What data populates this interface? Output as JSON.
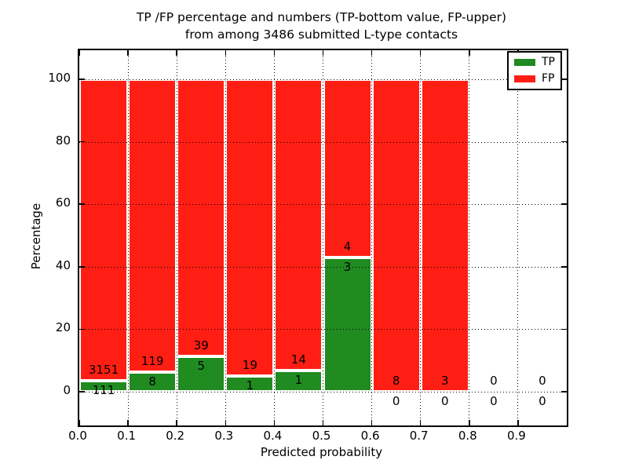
{
  "chart_data": {
    "type": "bar",
    "variant": "stacked-100-percent",
    "title": {
      "line1": "TP /FP percentage and numbers (TP-bottom value, FP-upper)",
      "line2": "from among 3486 submitted L-type contacts"
    },
    "xlabel": "Predicted probability",
    "ylabel": "Percentage",
    "total_contacts": 3486,
    "xticks": [
      "0.0",
      "0.1",
      "0.2",
      "0.3",
      "0.4",
      "0.5",
      "0.6",
      "0.7",
      "0.8",
      "0.9"
    ],
    "yticks": [
      "0",
      "20",
      "40",
      "60",
      "80",
      "100"
    ],
    "ytick_values": [
      0,
      20,
      40,
      60,
      80,
      100
    ],
    "xlim": [
      0.0,
      1.0
    ],
    "ylim_pct": [
      -10.8,
      109.3
    ],
    "grid": {
      "visible": true,
      "style": "dotted"
    },
    "legend_position": "upper right",
    "bins": [
      {
        "range": "0.0-0.1",
        "tp": 111,
        "fp": 3151,
        "tp_pct": 3.4
      },
      {
        "range": "0.1-0.2",
        "tp": 8,
        "fp": 119,
        "tp_pct": 6.3
      },
      {
        "range": "0.2-0.3",
        "tp": 5,
        "fp": 39,
        "tp_pct": 11.36
      },
      {
        "range": "0.3-0.4",
        "tp": 1,
        "fp": 19,
        "tp_pct": 5.0
      },
      {
        "range": "0.4-0.5",
        "tp": 1,
        "fp": 14,
        "tp_pct": 6.67
      },
      {
        "range": "0.5-0.6",
        "tp": 3,
        "fp": 4,
        "tp_pct": 42.86
      },
      {
        "range": "0.6-0.7",
        "tp": 0,
        "fp": 8,
        "tp_pct": 0
      },
      {
        "range": "0.7-0.8",
        "tp": 0,
        "fp": 3,
        "tp_pct": 0
      },
      {
        "range": "0.8-0.9",
        "tp": 0,
        "fp": 0,
        "tp_pct": null
      },
      {
        "range": "0.9-1.0",
        "tp": 0,
        "fp": 0,
        "tp_pct": null
      }
    ],
    "legend": [
      {
        "label": "TP",
        "color": "#208b20"
      },
      {
        "label": "FP",
        "color": "#ff1e14"
      }
    ],
    "colors": {
      "tp": "#208b20",
      "fp": "#ff1e14",
      "bar_edge": "#ffffff",
      "axes": "#000000",
      "background": "#ffffff"
    }
  }
}
